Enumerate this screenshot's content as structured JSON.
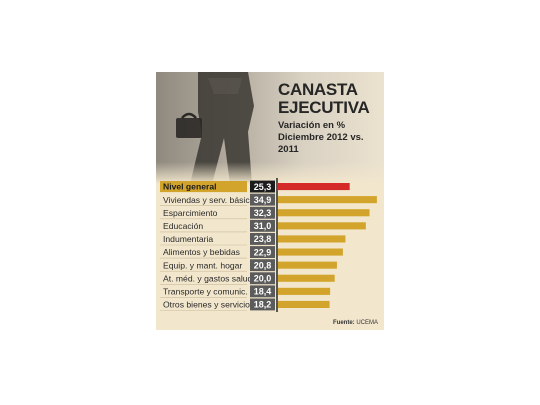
{
  "header": {
    "title_line1": "CANASTA",
    "title_line2": "EJECUTIVA",
    "subtitle_line1": "Variación en %",
    "subtitle_line2": "Diciembre 2012 vs. 2011"
  },
  "source": {
    "label": "Fuente:",
    "name": "UCEMA"
  },
  "colors": {
    "bar": "#d2a42b",
    "highlight_bar": "#d42a28",
    "value_box": "#5b5b5b",
    "highlight_value_box": "#1c1c1c",
    "highlight_label_bg": "#d2a42b"
  },
  "chart_data": {
    "type": "bar",
    "orientation": "horizontal",
    "categories": [
      "Nivel general",
      "Viviendas y serv. básicos",
      "Esparcimiento",
      "Educación",
      "Indumentaria",
      "Alimentos y bebidas",
      "Equip. y mant. hogar",
      "At. méd. y gastos salud",
      "Transporte y comunic.",
      "Otros bienes y servicios"
    ],
    "values": [
      25.3,
      34.9,
      32.3,
      31.0,
      23.8,
      22.9,
      20.8,
      20.0,
      18.4,
      18.2
    ],
    "value_labels": [
      "25,3",
      "34,9",
      "32,3",
      "31,0",
      "23,8",
      "22,9",
      "20,8",
      "20,0",
      "18,4",
      "18,2"
    ],
    "highlight_index": 0,
    "xlim": [
      0,
      36
    ],
    "grid": false,
    "legend": "none"
  }
}
